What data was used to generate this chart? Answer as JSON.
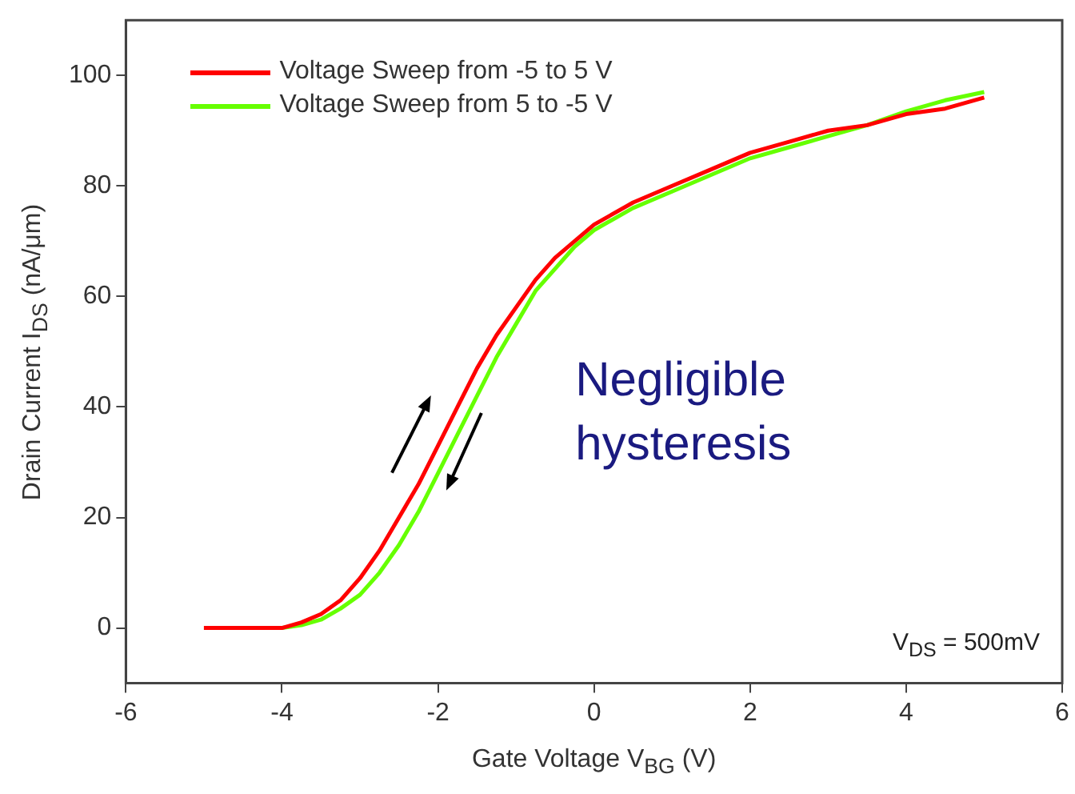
{
  "chart_data": {
    "type": "line",
    "xlabel": "Gate Voltage V$_{BG}$ (V)",
    "ylabel": "Drain Current I$_{DS}$ (nA/μm)",
    "xlim": [
      -6,
      6
    ],
    "xticks": [
      -6,
      -4,
      -2,
      0,
      2,
      4,
      6
    ],
    "ylim": [
      -10,
      110
    ],
    "yticks": [
      0,
      20,
      40,
      60,
      80,
      100
    ],
    "grid": false,
    "legend": "top left",
    "marker": "none",
    "line_style": "solid",
    "annotations": [
      "Negligible\nhysteresis",
      "V$_{DS}$ = 500mV"
    ],
    "series": [
      {
        "name": "Voltage Sweep from -5 to 5 V",
        "color": "#ff0000",
        "x": [
          -5,
          -4.5,
          -4,
          -3.75,
          -3.5,
          -3.25,
          -3,
          -2.75,
          -2.5,
          -2.25,
          -2,
          -1.75,
          -1.5,
          -1.25,
          -1,
          -0.75,
          -0.5,
          -0.25,
          0,
          0.5,
          1,
          1.5,
          2,
          2.5,
          3,
          3.5,
          4,
          4.5,
          5
        ],
        "values": [
          0,
          0,
          0,
          1,
          2.5,
          5,
          9,
          14,
          20,
          26,
          33,
          40,
          47,
          53,
          58,
          63,
          67,
          70,
          73,
          77,
          80,
          83,
          86,
          88,
          90,
          91,
          93,
          94,
          96
        ]
      },
      {
        "name": "Voltage Sweep from 5 to -5 V",
        "color": "#66ff00",
        "x": [
          -5,
          -4.5,
          -4,
          -3.75,
          -3.5,
          -3.25,
          -3,
          -2.75,
          -2.5,
          -2.25,
          -2,
          -1.75,
          -1.5,
          -1.25,
          -1,
          -0.75,
          -0.5,
          -0.25,
          0,
          0.5,
          1,
          1.5,
          2,
          2.5,
          3,
          3.5,
          4,
          4.5,
          5
        ],
        "values": [
          0,
          0,
          0,
          0.5,
          1.5,
          3.5,
          6,
          10,
          15,
          21,
          28,
          35,
          42,
          49,
          55,
          61,
          65,
          69,
          72,
          76,
          79,
          82,
          85,
          87,
          89,
          91,
          93.5,
          95.5,
          97
        ]
      }
    ]
  }
}
